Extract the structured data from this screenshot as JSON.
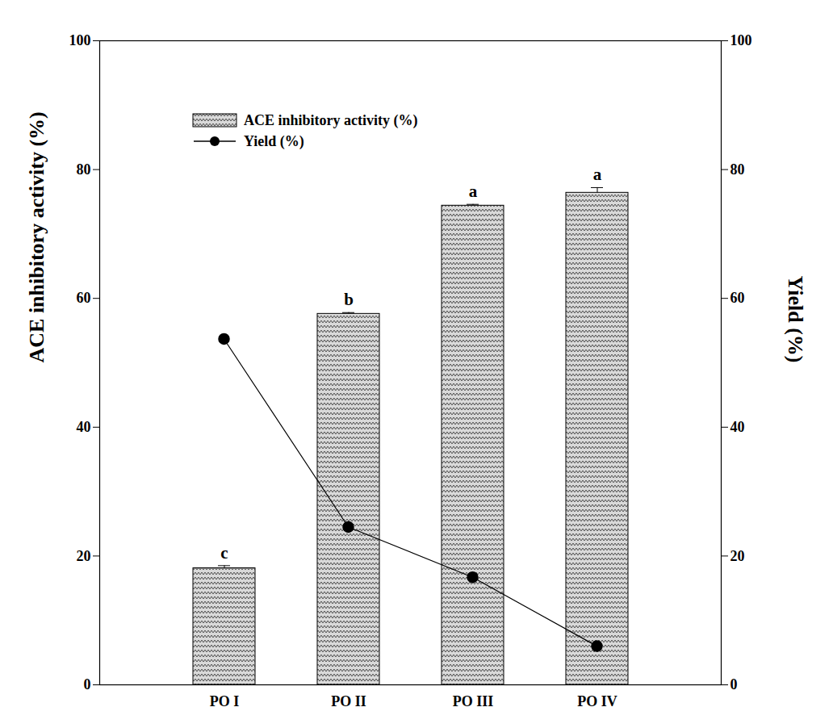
{
  "chart_data": {
    "type": "bar",
    "categories": [
      "PO I",
      "PO II",
      "PO III",
      "PO IV"
    ],
    "ylabel": "ACE inhibitory activity (%)",
    "y2label": "Yield (%)",
    "ylim": [
      0,
      100
    ],
    "yticks": [
      0,
      20,
      40,
      60,
      80,
      100
    ],
    "y2lim": [
      0,
      100
    ],
    "y2ticks": [
      0,
      20,
      40,
      60,
      80,
      100
    ],
    "legend": "top-left",
    "series": [
      {
        "name": "ACE inhibitory activity (%)",
        "type": "bar",
        "color": "#d9d9d9",
        "values": [
          18.1,
          57.6,
          74.4,
          76.4
        ],
        "errors": [
          0.4,
          0.2,
          0.2,
          0.8
        ],
        "annotations": [
          "c",
          "b",
          "a",
          "a"
        ]
      },
      {
        "name": "Yield (%)",
        "type": "line",
        "axis": "y2",
        "color": "#000000",
        "marker": "circle",
        "values": [
          53.7,
          24.5,
          16.7,
          6.0
        ],
        "errors": [
          0.6,
          0.4,
          0.4,
          0.4
        ]
      }
    ]
  }
}
